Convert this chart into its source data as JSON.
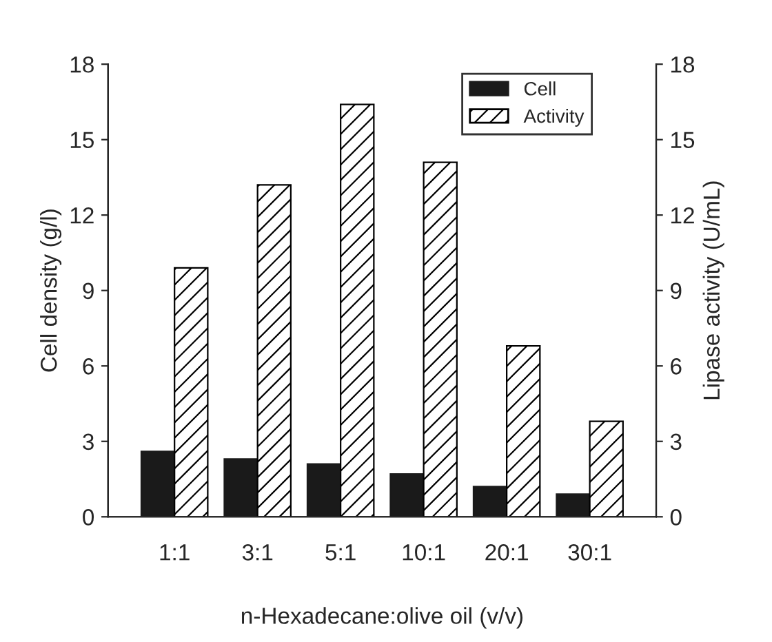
{
  "chart_data": {
    "type": "bar",
    "xlabel": "n-Hexadecane:olive oil (v/v)",
    "ylabel": "Cell density (g/l)",
    "y2label": "Lipase activity (U/mL)",
    "categories": [
      "1:1",
      "3:1",
      "5:1",
      "10:1",
      "20:1",
      "30:1"
    ],
    "series": [
      {
        "name": "Cell",
        "color": "#1a1a1a",
        "values": [
          2.6,
          2.3,
          2.1,
          1.7,
          1.2,
          0.9
        ]
      },
      {
        "name": "Activity",
        "color": "#000000",
        "axis": "y2",
        "values": [
          9.9,
          13.2,
          16.4,
          14.1,
          6.8,
          3.8
        ]
      }
    ],
    "ylim": [
      0,
      18
    ],
    "yticks": [
      0,
      3,
      6,
      9,
      12,
      15,
      18
    ],
    "y2lim": [
      0,
      18
    ],
    "y2ticks": [
      0,
      3,
      6,
      9,
      12,
      15,
      18
    ],
    "grid": false,
    "legend": "top right"
  }
}
